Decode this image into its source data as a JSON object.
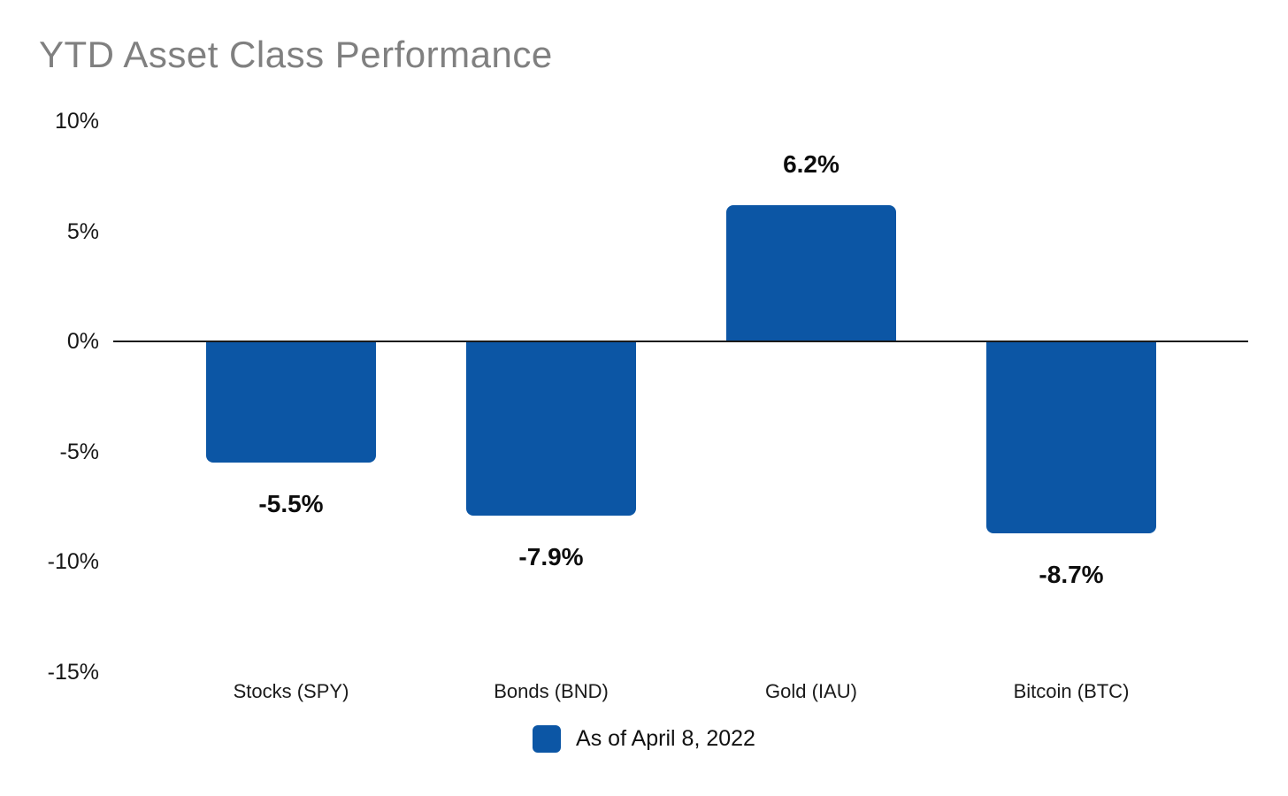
{
  "title": "YTD Asset Class Performance",
  "chart_data": {
    "type": "bar",
    "title": "YTD Asset Class Performance",
    "categories": [
      "Stocks (SPY)",
      "Bonds (BND)",
      "Gold (IAU)",
      "Bitcoin (BTC)"
    ],
    "values": [
      -5.5,
      -7.9,
      6.2,
      -8.7
    ],
    "value_labels": [
      "-5.5%",
      "-7.9%",
      "6.2%",
      "-8.7%"
    ],
    "xlabel": "",
    "ylabel": "",
    "ylim": [
      -15,
      10
    ],
    "y_ticks": [
      "10%",
      "5%",
      "0%",
      "-5%",
      "-10%",
      "-15%"
    ],
    "y_tick_values": [
      10,
      5,
      0,
      -5,
      -10,
      -15
    ],
    "grid": false,
    "legend_position": "bottom",
    "legend_label": "As of April 8, 2022",
    "bar_color": "#0C56A5"
  },
  "colors": {
    "bar": "#0C56A5",
    "title_text": "#808080",
    "axis_line": "#1a1a1a",
    "label_text": "#0d0d0d"
  }
}
